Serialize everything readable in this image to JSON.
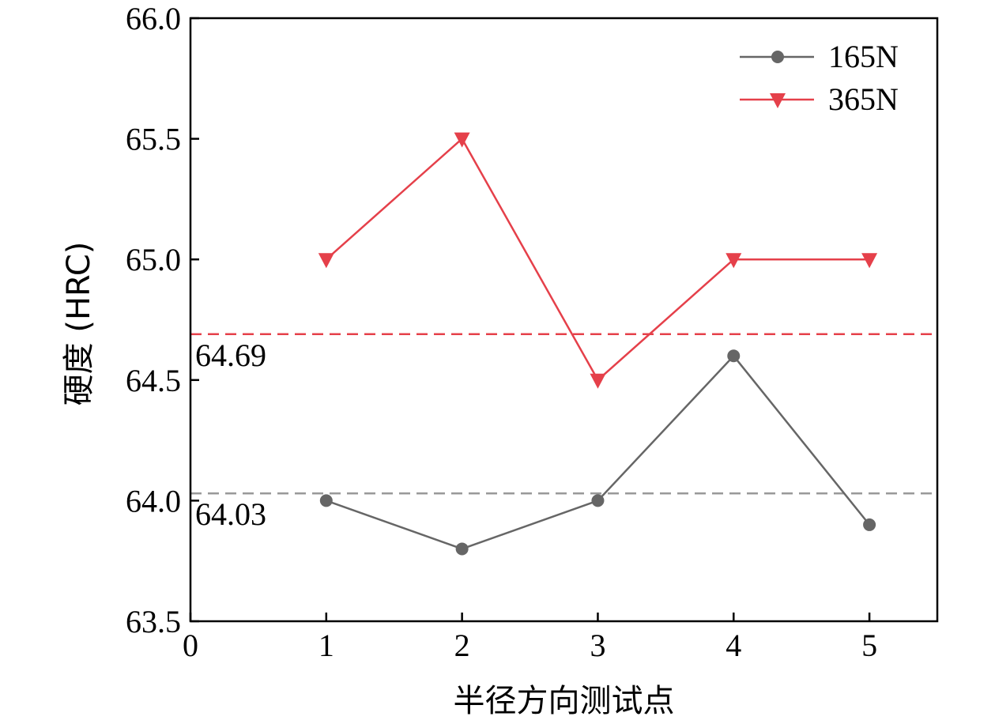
{
  "colors": {
    "series_165": "#666666",
    "series_365": "#e5404a",
    "ref_165": "#999999",
    "ref_365": "#e5404a",
    "axis": "#000000"
  },
  "chart_data": {
    "type": "line",
    "title": "",
    "xlabel": "半径方向测试点",
    "ylabel": "硬度 (HRC)",
    "xlim": [
      0,
      5.5
    ],
    "ylim": [
      63.5,
      66.0
    ],
    "xticks": [
      0,
      1,
      2,
      3,
      4,
      5
    ],
    "xtick_labels": [
      "0",
      "1",
      "2",
      "3",
      "4",
      "5"
    ],
    "yticks": [
      63.5,
      64.0,
      64.5,
      65.0,
      65.5,
      66.0
    ],
    "ytick_labels": [
      "63.5",
      "64.0",
      "64.5",
      "65.0",
      "65.5",
      "66.0"
    ],
    "grid": false,
    "legend_position": "top-right",
    "x": [
      1,
      2,
      3,
      4,
      5
    ],
    "series": [
      {
        "name": "165N",
        "marker": "circle",
        "values": [
          64.0,
          63.8,
          64.0,
          64.6,
          63.9
        ]
      },
      {
        "name": "365N",
        "marker": "triangle-down",
        "values": [
          65.0,
          65.5,
          64.5,
          65.0,
          65.0
        ]
      }
    ],
    "reference_lines": [
      {
        "label": "64.69",
        "value": 64.69,
        "style": "dashed",
        "series": "365N"
      },
      {
        "label": "64.03",
        "value": 64.03,
        "style": "dashed",
        "series": "165N"
      }
    ]
  }
}
